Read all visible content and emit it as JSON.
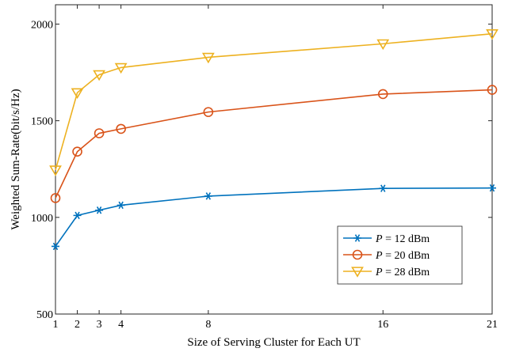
{
  "chart_data": {
    "type": "line",
    "title": "",
    "xlabel": "Size of Serving Cluster for Each UT",
    "ylabel": "Weighted Sum-Rate(bit/s/Hz)",
    "x": [
      1,
      2,
      3,
      4,
      8,
      16,
      21
    ],
    "xticks": [
      "1",
      "2",
      "3",
      "4",
      "8",
      "16",
      "21"
    ],
    "yticks": [
      "500",
      "1000",
      "1500",
      "2000"
    ],
    "xlim": [
      1,
      21
    ],
    "ylim": [
      500,
      2100
    ],
    "grid": false,
    "legend_position": "bottom-right",
    "series": [
      {
        "name": "P = 12 dBm",
        "legend_var": "P",
        "legend_rest": " = 12 dBm",
        "marker": "asterisk",
        "color": "#0072BD",
        "values": [
          850,
          1010,
          1037,
          1063,
          1110,
          1150,
          1152
        ]
      },
      {
        "name": "P = 20 dBm",
        "legend_var": "P",
        "legend_rest": " = 20 dBm",
        "marker": "circle",
        "color": "#D95319",
        "values": [
          1100,
          1340,
          1435,
          1458,
          1545,
          1638,
          1660
        ]
      },
      {
        "name": "P = 28 dBm",
        "legend_var": "P",
        "legend_rest": " = 28 dBm",
        "marker": "triangle-down",
        "color": "#EDB120",
        "values": [
          1245,
          1645,
          1738,
          1775,
          1828,
          1898,
          1950
        ]
      }
    ]
  }
}
